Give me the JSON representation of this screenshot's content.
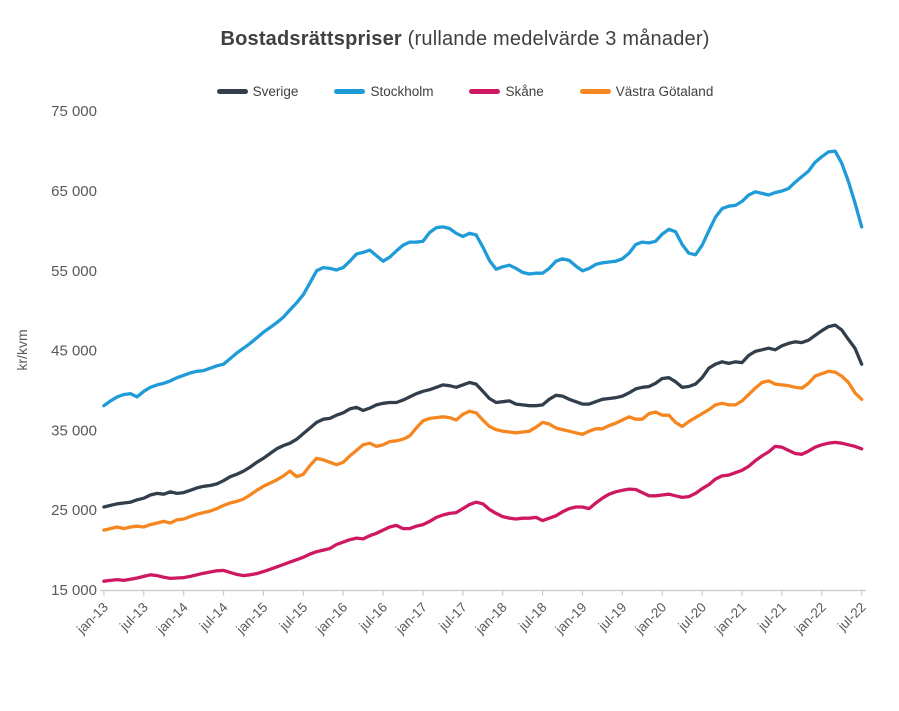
{
  "title": {
    "bold": "Bostadsrättspriser",
    "regular": " (rullande medelvärde 3 månader)"
  },
  "chart_data": {
    "type": "line",
    "title": "Bostadsrättspriser (rullande medelvärde 3 månader)",
    "ylabel": "kr/kvm",
    "xlabel": "",
    "unit": "kr/kvm",
    "grid": false,
    "legend_position": "top",
    "x_interval": "monthly",
    "x_start": "jan-13",
    "x_end": "jul-22",
    "points_per_series": 115,
    "ylim": [
      15000,
      75000
    ],
    "y_ticks": [
      "15 000",
      "25 000",
      "35 000",
      "45 000",
      "55 000",
      "65 000",
      "75 000"
    ],
    "x_tick_labels": [
      "jan-13",
      "jul-13",
      "jan-14",
      "jul-14",
      "jan-15",
      "jul-15",
      "jan-16",
      "jul-16",
      "jan-17",
      "jul-17",
      "jan-18",
      "jul-18",
      "jan-19",
      "jul-19",
      "jan-20",
      "jul-20",
      "jan-21",
      "jul-21",
      "jan-22",
      "jul-22"
    ],
    "series": [
      {
        "name": "Sverige",
        "color": "#323f4b",
        "values": [
          25400,
          25600,
          25800,
          25900,
          26000,
          26300,
          26500,
          26900,
          27100,
          27000,
          27300,
          27100,
          27200,
          27500,
          27800,
          28000,
          28100,
          28300,
          28700,
          29200,
          29500,
          29900,
          30400,
          31000,
          31500,
          32100,
          32700,
          33100,
          33400,
          33900,
          34600,
          35300,
          36000,
          36400,
          36500,
          36900,
          37200,
          37700,
          37900,
          37500,
          37800,
          38200,
          38400,
          38500,
          38500,
          38800,
          39200,
          39600,
          39900,
          40100,
          40400,
          40700,
          40600,
          40400,
          40700,
          41000,
          40800,
          39900,
          39000,
          38500,
          38600,
          38700,
          38300,
          38200,
          38100,
          38100,
          38200,
          38900,
          39400,
          39300,
          38900,
          38600,
          38300,
          38300,
          38600,
          38900,
          39000,
          39100,
          39300,
          39700,
          40200,
          40400,
          40500,
          40900,
          41500,
          41600,
          41100,
          40400,
          40500,
          40800,
          41600,
          42800,
          43300,
          43600,
          43400,
          43600,
          43500,
          44400,
          44900,
          45100,
          45300,
          45100,
          45600,
          45900,
          46100,
          46000,
          46300,
          46900,
          47500,
          48000,
          48200,
          47600,
          46400,
          45300,
          43300
        ]
      },
      {
        "name": "Stockholm",
        "color": "#1f9cd8",
        "values": [
          38100,
          38700,
          39200,
          39500,
          39600,
          39200,
          39900,
          40400,
          40700,
          40900,
          41200,
          41600,
          41900,
          42200,
          42400,
          42500,
          42800,
          43100,
          43300,
          44000,
          44700,
          45300,
          45900,
          46600,
          47300,
          47900,
          48500,
          49200,
          50100,
          51000,
          52000,
          53500,
          55000,
          55400,
          55300,
          55100,
          55400,
          56200,
          57100,
          57300,
          57600,
          56900,
          56200,
          56700,
          57500,
          58200,
          58600,
          58600,
          58700,
          59800,
          60400,
          60500,
          60300,
          59700,
          59300,
          59700,
          59500,
          58000,
          56300,
          55200,
          55500,
          55700,
          55300,
          54800,
          54600,
          54700,
          54700,
          55300,
          56200,
          56500,
          56300,
          55600,
          55000,
          55300,
          55800,
          56000,
          56100,
          56200,
          56500,
          57200,
          58300,
          58600,
          58500,
          58700,
          59600,
          60200,
          59900,
          58300,
          57200,
          57000,
          58200,
          60000,
          61700,
          62800,
          63100,
          63200,
          63700,
          64500,
          64900,
          64700,
          64500,
          64800,
          65000,
          65300,
          66100,
          66800,
          67500,
          68600,
          69300,
          69900,
          70000,
          68500,
          66200,
          63500,
          60500
        ]
      },
      {
        "name": "Skåne",
        "color": "#ce1861",
        "values": [
          16100,
          16200,
          16300,
          16200,
          16350,
          16500,
          16700,
          16900,
          16800,
          16600,
          16450,
          16500,
          16550,
          16700,
          16900,
          17100,
          17250,
          17400,
          17450,
          17200,
          16950,
          16800,
          16900,
          17050,
          17300,
          17600,
          17900,
          18200,
          18500,
          18800,
          19100,
          19500,
          19800,
          20000,
          20200,
          20700,
          21000,
          21300,
          21500,
          21400,
          21800,
          22100,
          22500,
          22900,
          23100,
          22700,
          22700,
          23000,
          23200,
          23600,
          24100,
          24400,
          24600,
          24700,
          25200,
          25700,
          26000,
          25800,
          25100,
          24600,
          24200,
          24000,
          23900,
          24000,
          24000,
          24100,
          23700,
          24000,
          24300,
          24800,
          25200,
          25400,
          25400,
          25200,
          25900,
          26500,
          27000,
          27300,
          27500,
          27650,
          27600,
          27200,
          26800,
          26800,
          26900,
          27000,
          26800,
          26600,
          26700,
          27100,
          27700,
          28200,
          28900,
          29300,
          29400,
          29700,
          30000,
          30500,
          31200,
          31800,
          32300,
          33000,
          32900,
          32500,
          32100,
          32000,
          32400,
          32900,
          33200,
          33400,
          33500,
          33400,
          33200,
          33000,
          32700
        ]
      },
      {
        "name": "Västra Götaland",
        "color": "#f6861f",
        "values": [
          22500,
          22700,
          22900,
          22700,
          22900,
          23000,
          22900,
          23200,
          23400,
          23600,
          23400,
          23800,
          23900,
          24200,
          24500,
          24700,
          24900,
          25200,
          25600,
          25900,
          26100,
          26400,
          26900,
          27500,
          28000,
          28400,
          28800,
          29300,
          29900,
          29200,
          29500,
          30600,
          31500,
          31300,
          31000,
          30700,
          31000,
          31800,
          32500,
          33200,
          33400,
          33000,
          33200,
          33600,
          33700,
          33900,
          34300,
          35300,
          36200,
          36500,
          36600,
          36700,
          36600,
          36300,
          37000,
          37400,
          37200,
          36300,
          35500,
          35100,
          34900,
          34800,
          34700,
          34800,
          34900,
          35400,
          36000,
          35800,
          35300,
          35100,
          34900,
          34700,
          34500,
          34900,
          35200,
          35200,
          35600,
          35900,
          36300,
          36700,
          36400,
          36400,
          37100,
          37300,
          36900,
          36900,
          36000,
          35500,
          36100,
          36600,
          37100,
          37600,
          38200,
          38400,
          38200,
          38200,
          38700,
          39500,
          40300,
          41000,
          41200,
          40800,
          40700,
          40600,
          40400,
          40300,
          40900,
          41800,
          42100,
          42400,
          42300,
          41800,
          41000,
          39700,
          38900
        ]
      }
    ]
  }
}
